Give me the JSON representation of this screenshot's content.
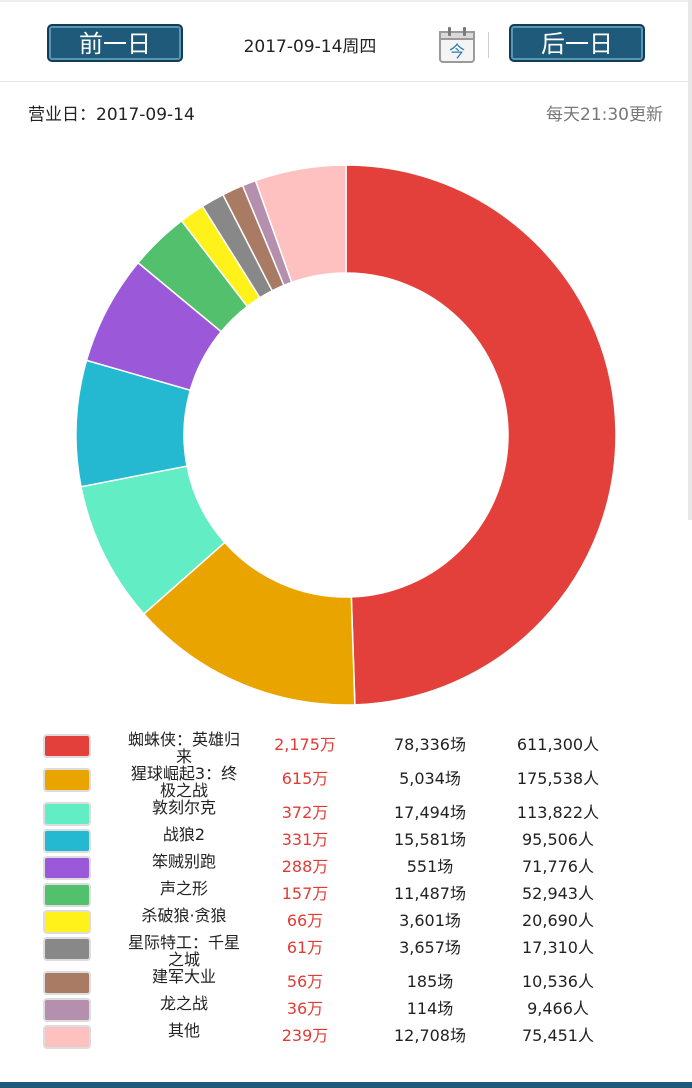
{
  "header": {
    "prev_label": "前一日",
    "next_label": "后一日",
    "date_label": "2017-09-14周四",
    "calendar_label": "今"
  },
  "info": {
    "business_day": "营业日：2017-09-14",
    "update_note": "每天21:30更新"
  },
  "colors": {
    "accent": "#1f5a7a",
    "boxoffice_text": "#e23b36"
  },
  "chart_data": {
    "type": "pie",
    "donut": true,
    "title": "",
    "legend_placement": "bottom",
    "slices": [
      {
        "label": "蜘蛛侠：英雄归来",
        "value": 2175,
        "color": "#e3403b"
      },
      {
        "label": "猩球崛起3：终极之战",
        "value": 615,
        "color": "#eaa400"
      },
      {
        "label": "敦刻尔克",
        "value": 372,
        "color": "#63edc4"
      },
      {
        "label": "战狼2",
        "value": 331,
        "color": "#25b8d1"
      },
      {
        "label": "笨贼别跑",
        "value": 288,
        "color": "#9b59da"
      },
      {
        "label": "声之形",
        "value": 157,
        "color": "#52c06c"
      },
      {
        "label": "杀破狼·贪狼",
        "value": 66,
        "color": "#fff21a"
      },
      {
        "label": "星际特工：千星之城",
        "value": 61,
        "color": "#888888"
      },
      {
        "label": "建军大业",
        "value": 56,
        "color": "#a97a64"
      },
      {
        "label": "龙之战",
        "value": 36,
        "color": "#b48fae"
      },
      {
        "label": "其他",
        "value": 239,
        "color": "#ffc0c0"
      }
    ]
  },
  "table": {
    "rows": [
      {
        "name": "蜘蛛侠：英雄归来",
        "box": "2,175万",
        "shows": "78,336场",
        "people": "611,300人"
      },
      {
        "name": "猩球崛起3：终极之战",
        "box": "615万",
        "shows": "5,034场",
        "people": "175,538人"
      },
      {
        "name": "敦刻尔克",
        "box": "372万",
        "shows": "17,494场",
        "people": "113,822人"
      },
      {
        "name": "战狼2",
        "box": "331万",
        "shows": "15,581场",
        "people": "95,506人"
      },
      {
        "name": "笨贼别跑",
        "box": "288万",
        "shows": "551场",
        "people": "71,776人"
      },
      {
        "name": "声之形",
        "box": "157万",
        "shows": "11,487场",
        "people": "52,943人"
      },
      {
        "name": "杀破狼·贪狼",
        "box": "66万",
        "shows": "3,601场",
        "people": "20,690人"
      },
      {
        "name": "星际特工：千星之城",
        "box": "61万",
        "shows": "3,657场",
        "people": "17,310人"
      },
      {
        "name": "建军大业",
        "box": "56万",
        "shows": "185场",
        "people": "10,536人"
      },
      {
        "name": "龙之战",
        "box": "36万",
        "shows": "114场",
        "people": "9,466人"
      },
      {
        "name": "其他",
        "box": "239万",
        "shows": "12,708场",
        "people": "75,451人"
      }
    ]
  }
}
